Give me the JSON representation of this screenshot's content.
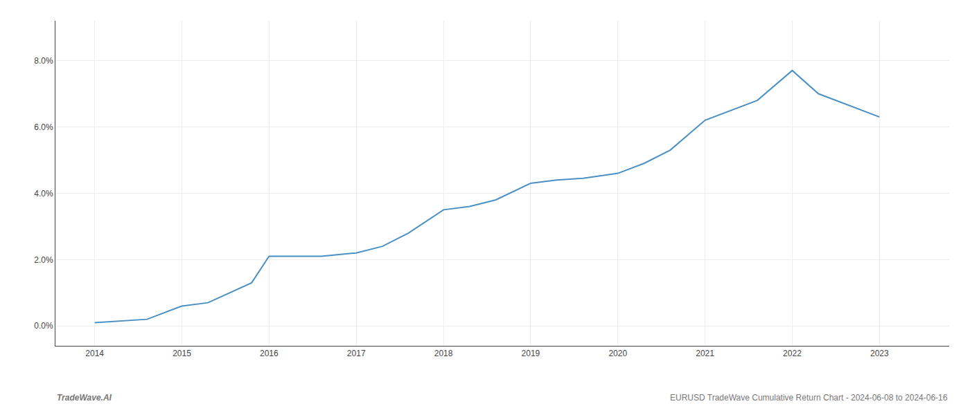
{
  "chart_data": {
    "type": "line",
    "x": [
      2014,
      2014.3,
      2014.6,
      2015,
      2015.3,
      2015.8,
      2016,
      2016.3,
      2016.6,
      2017,
      2017.3,
      2017.6,
      2018,
      2018.3,
      2018.6,
      2019,
      2019.3,
      2019.6,
      2020,
      2020.3,
      2020.6,
      2021,
      2021.3,
      2021.6,
      2022,
      2022.3,
      2023
    ],
    "values": [
      0.001,
      0.0015,
      0.002,
      0.006,
      0.007,
      0.013,
      0.021,
      0.021,
      0.021,
      0.022,
      0.024,
      0.028,
      0.035,
      0.036,
      0.038,
      0.043,
      0.044,
      0.0445,
      0.046,
      0.049,
      0.053,
      0.062,
      0.065,
      0.068,
      0.077,
      0.07,
      0.063
    ],
    "color": "#4a90c4",
    "xlim": [
      2013.55,
      2023.8
    ],
    "xticks": [
      2014,
      2015,
      2016,
      2017,
      2018,
      2019,
      2020,
      2021,
      2022,
      2023
    ],
    "ylim": [
      -0.006,
      0.092
    ],
    "yticks": [
      {
        "value": 0.0,
        "label": "0.0%"
      },
      {
        "value": 0.02,
        "label": "2.0%"
      },
      {
        "value": 0.04,
        "label": "4.0%"
      },
      {
        "value": 0.06,
        "label": "6.0%"
      },
      {
        "value": 0.08,
        "label": "8.0%"
      }
    ],
    "grid": true,
    "annotations": [
      "TradeWave.AI",
      "EURUSD TradeWave Cumulative Return Chart - 2024-06-08 to 2024-06-16"
    ]
  }
}
